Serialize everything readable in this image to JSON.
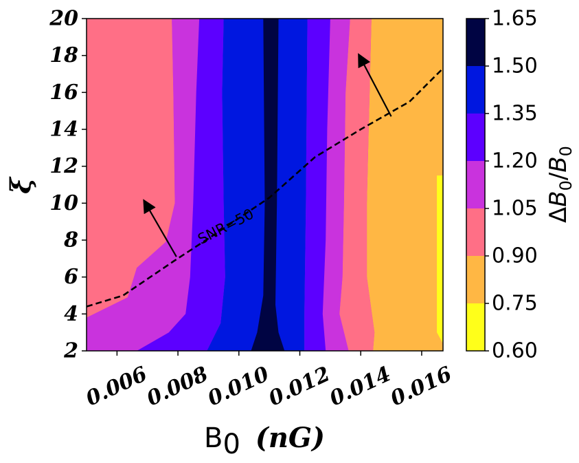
{
  "chart_data": {
    "type": "contourf",
    "x": {
      "label_symbol": "B",
      "label_subscript": "0",
      "label_unit": "(nG)",
      "range": [
        0.005,
        0.0167
      ],
      "ticks": [
        0.006,
        0.008,
        0.01,
        0.012,
        0.014,
        0.016
      ],
      "tick_labels": [
        "0.006",
        "0.008",
        "0.010",
        "0.012",
        "0.014",
        "0.016"
      ]
    },
    "y": {
      "label": "ξ",
      "range": [
        2,
        20
      ],
      "ticks": [
        2,
        4,
        6,
        8,
        10,
        12,
        14,
        16,
        18,
        20
      ],
      "tick_labels": [
        "2",
        "4",
        "6",
        "8",
        "10",
        "12",
        "14",
        "16",
        "18",
        "20"
      ]
    },
    "colorbar": {
      "label": "ΔB₀/B₀",
      "label_parts": [
        "Δ",
        "B",
        "0",
        "/",
        "B",
        "0"
      ],
      "levels": [
        0.6,
        0.75,
        0.9,
        1.05,
        1.2,
        1.35,
        1.5,
        1.65
      ],
      "tick_labels": [
        "0.60",
        "0.75",
        "0.90",
        "1.05",
        "1.20",
        "1.35",
        "1.50",
        "1.65"
      ],
      "colors": [
        "#ffff1a",
        "#ffb744",
        "#ff6f86",
        "#c933dd",
        "#5c00ff",
        "#0017e0",
        "#000443"
      ]
    },
    "regions": [
      {
        "name": "level-0.75-0.90",
        "color_index": 1,
        "points": [
          [
            0.0144,
            2
          ],
          [
            0.0167,
            2
          ],
          [
            0.0167,
            20
          ],
          [
            0.01435,
            20
          ],
          [
            0.0142,
            10
          ],
          [
            0.0142,
            6
          ],
          [
            0.01445,
            3
          ],
          [
            0.0144,
            2
          ]
        ]
      },
      {
        "name": "level-0.60-0.75",
        "color_index": 0,
        "points": [
          [
            0.0165,
            11.5
          ],
          [
            0.0167,
            11.5
          ],
          [
            0.0167,
            2.4
          ],
          [
            0.0165,
            3
          ],
          [
            0.0165,
            11.5
          ]
        ]
      },
      {
        "name": "level-0.90-1.05-left",
        "color_index": 2,
        "points": [
          [
            0.005,
            3.8
          ],
          [
            0.00635,
            4.9
          ],
          [
            0.00665,
            6.5
          ],
          [
            0.0076,
            7.9
          ],
          [
            0.0079,
            10
          ],
          [
            0.00785,
            16
          ],
          [
            0.0078,
            20
          ],
          [
            0.005,
            20
          ],
          [
            0.005,
            3.8
          ]
        ]
      },
      {
        "name": "level-0.90-1.05-right",
        "color_index": 2,
        "points": [
          [
            0.0136,
            2
          ],
          [
            0.0144,
            2
          ],
          [
            0.01445,
            3
          ],
          [
            0.0142,
            6
          ],
          [
            0.0142,
            10
          ],
          [
            0.01435,
            20
          ],
          [
            0.01365,
            20
          ],
          [
            0.0135,
            16
          ],
          [
            0.01345,
            10
          ],
          [
            0.0134,
            6
          ],
          [
            0.0133,
            4
          ],
          [
            0.0136,
            2
          ]
        ]
      },
      {
        "name": "level-1.05-1.20-left",
        "color_index": 3,
        "points": [
          [
            0.005,
            2
          ],
          [
            0.00665,
            2
          ],
          [
            0.0077,
            3
          ],
          [
            0.00825,
            4
          ],
          [
            0.0084,
            6
          ],
          [
            0.0085,
            10
          ],
          [
            0.0086,
            16
          ],
          [
            0.0087,
            20
          ],
          [
            0.0078,
            20
          ],
          [
            0.00785,
            16
          ],
          [
            0.0079,
            10
          ],
          [
            0.0076,
            7.9
          ],
          [
            0.00665,
            6.5
          ],
          [
            0.00635,
            4.9
          ],
          [
            0.005,
            3.8
          ],
          [
            0.005,
            2
          ]
        ]
      },
      {
        "name": "level-1.05-1.20-right",
        "color_index": 3,
        "points": [
          [
            0.01285,
            2
          ],
          [
            0.0136,
            2
          ],
          [
            0.0133,
            4
          ],
          [
            0.0134,
            6
          ],
          [
            0.01345,
            10
          ],
          [
            0.0135,
            16
          ],
          [
            0.01365,
            20
          ],
          [
            0.013,
            20
          ],
          [
            0.0129,
            14
          ],
          [
            0.01285,
            8
          ],
          [
            0.01275,
            4
          ],
          [
            0.01285,
            2
          ]
        ]
      },
      {
        "name": "level-1.20-1.35-left",
        "color_index": 4,
        "points": [
          [
            0.00665,
            2
          ],
          [
            0.00895,
            2
          ],
          [
            0.0094,
            3.5
          ],
          [
            0.00955,
            6
          ],
          [
            0.0095,
            10
          ],
          [
            0.00945,
            16
          ],
          [
            0.0095,
            20
          ],
          [
            0.0087,
            20
          ],
          [
            0.0086,
            16
          ],
          [
            0.0085,
            10
          ],
          [
            0.0084,
            6
          ],
          [
            0.00825,
            4
          ],
          [
            0.0077,
            3
          ],
          [
            0.00665,
            2
          ]
        ]
      },
      {
        "name": "level-1.20-1.35-right",
        "color_index": 4,
        "points": [
          [
            0.01215,
            2
          ],
          [
            0.01285,
            2
          ],
          [
            0.01275,
            4
          ],
          [
            0.01285,
            8
          ],
          [
            0.0129,
            14
          ],
          [
            0.013,
            20
          ],
          [
            0.01225,
            20
          ],
          [
            0.0122,
            10
          ],
          [
            0.01215,
            4
          ],
          [
            0.01215,
            2
          ]
        ]
      },
      {
        "name": "level-1.35-1.50",
        "color_index": 5,
        "points": [
          [
            0.00895,
            2
          ],
          [
            0.01215,
            2
          ],
          [
            0.01215,
            4
          ],
          [
            0.0122,
            10
          ],
          [
            0.01225,
            20
          ],
          [
            0.0095,
            20
          ],
          [
            0.00945,
            16
          ],
          [
            0.0095,
            10
          ],
          [
            0.00955,
            6
          ],
          [
            0.0094,
            3.5
          ],
          [
            0.00895,
            2
          ]
        ]
      },
      {
        "name": "level-1.50-1.65",
        "color_index": 6,
        "points": [
          [
            0.0104,
            2
          ],
          [
            0.0115,
            2
          ],
          [
            0.0113,
            3
          ],
          [
            0.0112,
            4.5
          ],
          [
            0.01125,
            10
          ],
          [
            0.0113,
            20
          ],
          [
            0.0108,
            20
          ],
          [
            0.01085,
            10
          ],
          [
            0.0108,
            5
          ],
          [
            0.0106,
            3
          ],
          [
            0.0104,
            2
          ]
        ]
      }
    ],
    "snr_contour": {
      "label": "SNR=50",
      "label_position": [
        0.00958,
        8.7
      ],
      "label_angle_deg": -27,
      "points": [
        [
          0.005,
          4.4
        ],
        [
          0.0062,
          5.0
        ],
        [
          0.0079,
          6.9
        ],
        [
          0.0092,
          8.3
        ],
        [
          0.011,
          10.3
        ],
        [
          0.0125,
          12.5
        ],
        [
          0.014,
          14.0
        ],
        [
          0.0156,
          15.5
        ],
        [
          0.0167,
          17.3
        ]
      ]
    },
    "arrows": [
      {
        "from": [
          0.00795,
          7.1
        ],
        "to": [
          0.0069,
          10.1
        ]
      },
      {
        "from": [
          0.015,
          14.7
        ],
        "to": [
          0.01395,
          18.0
        ]
      }
    ]
  }
}
